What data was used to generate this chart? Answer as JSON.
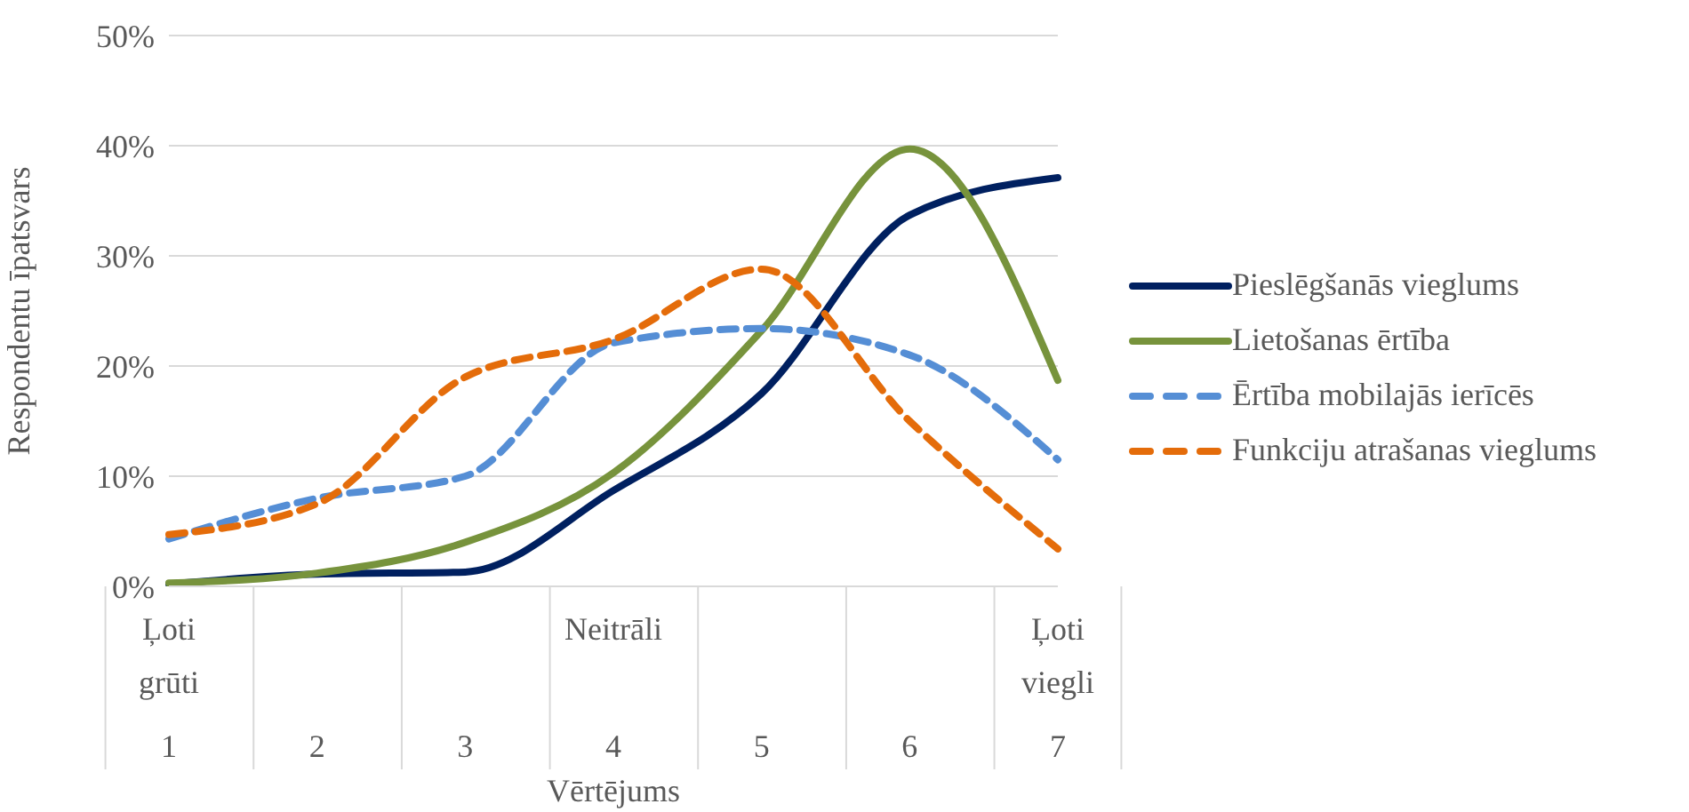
{
  "chart_data": {
    "type": "line",
    "xlabel": "Vērtējums",
    "ylabel": "Respondentu īpatsvars",
    "categories": [
      "Ļoti grūti 1",
      "2",
      "3",
      "Neitrāli 4",
      "5",
      "6",
      "Ļoti viegli 7"
    ],
    "series": [
      {
        "name": "Pieslēgšanās vieglums",
        "color": "#002060",
        "line_style": "solid",
        "values": [
          0.2,
          1.1,
          1.3,
          8.7,
          17.5,
          33.7,
          37.1
        ]
      },
      {
        "name": "Lietošanas ērtība",
        "color": "#77933c",
        "line_style": "solid",
        "values": [
          0.3,
          1.2,
          4.0,
          10.3,
          23.2,
          39.7,
          18.7
        ]
      },
      {
        "name": "Ērtība mobilajās ierīcēs",
        "color": "#558ed5",
        "line_style": "dashed",
        "values": [
          4.3,
          8.0,
          10.0,
          22.1,
          23.4,
          21.0,
          11.5
        ]
      },
      {
        "name": "Funkciju atrašanas vieglums",
        "color": "#e46c0a",
        "line_style": "dashed",
        "values": [
          4.7,
          7.5,
          19.0,
          22.4,
          28.8,
          15.0,
          3.4
        ]
      }
    ],
    "ylim": [
      0,
      50
    ],
    "yticks": [
      {
        "value": 0,
        "label": "0%"
      },
      {
        "value": 10,
        "label": "10%"
      },
      {
        "value": 20,
        "label": "20%"
      },
      {
        "value": 30,
        "label": "30%"
      },
      {
        "value": 40,
        "label": "40%"
      },
      {
        "value": 50,
        "label": "50%"
      }
    ],
    "grid": "y",
    "legend": "right",
    "marker": "none"
  }
}
